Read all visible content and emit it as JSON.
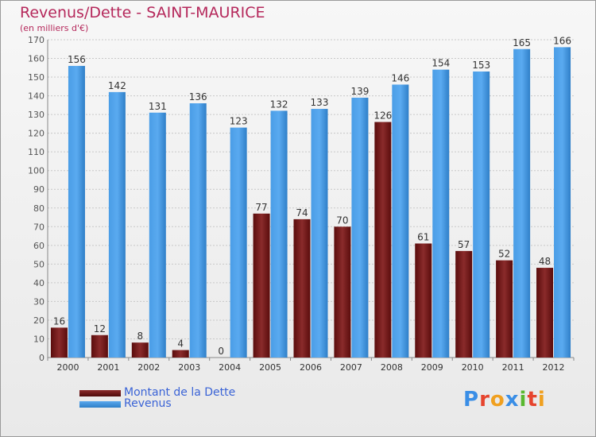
{
  "header": {
    "title": "Revenus/Dette - SAINT-MAURICE",
    "subtitle": "(en milliers d'€)"
  },
  "legend": {
    "items": [
      {
        "label": "Montant de la Dette",
        "color": "#6b1414"
      },
      {
        "label": "Revenus",
        "color": "#3b8fd9"
      }
    ]
  },
  "logo": {
    "text": "Proxiti"
  },
  "chart_data": {
    "type": "bar",
    "categories": [
      "2000",
      "2001",
      "2002",
      "2003",
      "2004",
      "2005",
      "2006",
      "2007",
      "2008",
      "2009",
      "2010",
      "2011",
      "2012"
    ],
    "series": [
      {
        "name": "Montant de la Dette",
        "color": "#6b1414",
        "values": [
          16,
          12,
          8,
          4,
          0,
          77,
          74,
          70,
          126,
          61,
          57,
          52,
          48
        ]
      },
      {
        "name": "Revenus",
        "color": "#3b8fd9",
        "values": [
          156,
          142,
          131,
          136,
          123,
          132,
          133,
          139,
          146,
          154,
          153,
          165,
          166
        ]
      }
    ],
    "ylim": [
      0,
      170
    ],
    "yticks": [
      0,
      10,
      20,
      30,
      40,
      50,
      60,
      70,
      80,
      90,
      100,
      110,
      120,
      130,
      140,
      150,
      160,
      170
    ],
    "grid": true,
    "legend_position": "bottom-left"
  }
}
